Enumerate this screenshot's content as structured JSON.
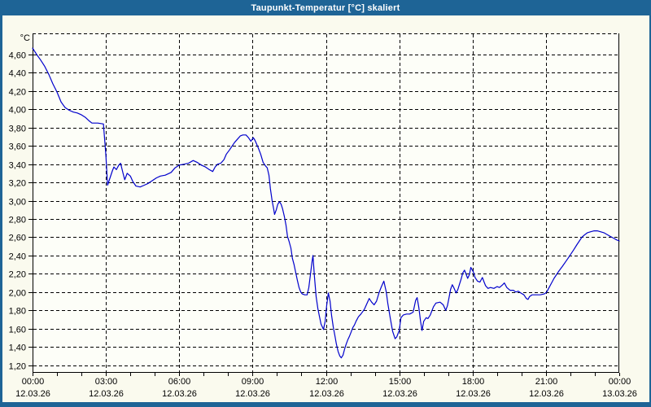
{
  "title": "Taupunkt-Temperatur [°C] skaliert",
  "colors": {
    "title_bar_bg": "#1E6496",
    "title_text": "#FFFFFF",
    "frame": "#1E6496",
    "margin_bg": "#FAFAEE",
    "plot_bg": "#FDFEF8",
    "grid": "#000000",
    "label": "#000000",
    "series_line": "#0000CC"
  },
  "chart_data": {
    "type": "line",
    "title": "Taupunkt-Temperatur [°C] skaliert",
    "ylabel": "°C",
    "xlabel": "",
    "grid": "dashed, on",
    "legend": "none",
    "ylim": [
      1.12,
      4.83
    ],
    "xlim_hours": [
      0,
      24
    ],
    "y_ticks": [
      {
        "value": 4.6,
        "label": "4,60"
      },
      {
        "value": 4.4,
        "label": "4,40"
      },
      {
        "value": 4.2,
        "label": "4,20"
      },
      {
        "value": 4.0,
        "label": "4,00"
      },
      {
        "value": 3.8,
        "label": "3,80"
      },
      {
        "value": 3.6,
        "label": "3,60"
      },
      {
        "value": 3.4,
        "label": "3,40"
      },
      {
        "value": 3.2,
        "label": "3,20"
      },
      {
        "value": 3.0,
        "label": "3,00"
      },
      {
        "value": 2.8,
        "label": "2,80"
      },
      {
        "value": 2.6,
        "label": "2,60"
      },
      {
        "value": 2.4,
        "label": "2,40"
      },
      {
        "value": 2.2,
        "label": "2,20"
      },
      {
        "value": 2.0,
        "label": "2,00"
      },
      {
        "value": 1.8,
        "label": "1,80"
      },
      {
        "value": 1.6,
        "label": "1,60"
      },
      {
        "value": 1.4,
        "label": "1,40"
      },
      {
        "value": 1.2,
        "label": "1,20"
      }
    ],
    "x_ticks": [
      {
        "hour": 0,
        "time": "00:00",
        "date": "12.03.26"
      },
      {
        "hour": 3,
        "time": "03:00",
        "date": "12.03.26"
      },
      {
        "hour": 6,
        "time": "06:00",
        "date": "12.03.26"
      },
      {
        "hour": 9,
        "time": "09:00",
        "date": "12.03.26"
      },
      {
        "hour": 12,
        "time": "12:00",
        "date": "12.03.26"
      },
      {
        "hour": 15,
        "time": "15:00",
        "date": "12.03.26"
      },
      {
        "hour": 18,
        "time": "18:00",
        "date": "12.03.26"
      },
      {
        "hour": 21,
        "time": "21:00",
        "date": "12.03.26"
      },
      {
        "hour": 24,
        "time": "00:00",
        "date": "13.03.26"
      }
    ],
    "series": [
      {
        "name": "Taupunkt-Temperatur",
        "color": "#0000CC",
        "points": {
          "t": [
            0.0,
            0.17,
            0.33,
            0.5,
            0.67,
            0.83,
            1.0,
            1.17,
            1.33,
            1.5,
            1.67,
            1.83,
            2.0,
            2.17,
            2.33,
            2.43,
            2.67,
            2.9,
            3.0,
            3.07,
            3.17,
            3.27,
            3.33,
            3.43,
            3.53,
            3.6,
            3.7,
            3.77,
            3.87,
            4.0,
            4.1,
            4.23,
            4.4,
            4.57,
            4.73,
            4.9,
            5.07,
            5.23,
            5.43,
            5.67,
            5.83,
            6.0,
            6.2,
            6.37,
            6.57,
            6.73,
            6.9,
            7.07,
            7.23,
            7.37,
            7.47,
            7.57,
            7.7,
            7.83,
            7.93,
            8.07,
            8.17,
            8.27,
            8.4,
            8.5,
            8.6,
            8.73,
            8.83,
            8.93,
            9.03,
            9.1,
            9.23,
            9.33,
            9.43,
            9.53,
            9.6,
            9.67,
            9.73,
            9.8,
            9.87,
            9.9,
            9.97,
            10.03,
            10.1,
            10.17,
            10.23,
            10.3,
            10.37,
            10.43,
            10.5,
            10.57,
            10.63,
            10.7,
            10.77,
            10.83,
            10.9,
            10.97,
            11.03,
            11.13,
            11.23,
            11.3,
            11.37,
            11.43,
            11.47,
            11.53,
            11.6,
            11.67,
            11.73,
            11.8,
            11.87,
            11.9,
            11.97,
            12.03,
            12.1,
            12.17,
            12.23,
            12.3,
            12.37,
            12.43,
            12.5,
            12.57,
            12.63,
            12.7,
            12.77,
            12.83,
            12.9,
            12.97,
            13.03,
            13.1,
            13.17,
            13.23,
            13.33,
            13.43,
            13.57,
            13.67,
            13.77,
            13.87,
            13.97,
            14.07,
            14.17,
            14.27,
            14.37,
            14.47,
            14.53,
            14.63,
            14.73,
            14.83,
            14.9,
            15.0,
            15.07,
            15.17,
            15.3,
            15.43,
            15.57,
            15.67,
            15.73,
            15.8,
            15.87,
            15.93,
            16.0,
            16.1,
            16.17,
            16.27,
            16.4,
            16.5,
            16.67,
            16.8,
            16.9,
            16.97,
            17.03,
            17.1,
            17.17,
            17.23,
            17.33,
            17.4,
            17.47,
            17.53,
            17.6,
            17.67,
            17.73,
            17.8,
            17.87,
            17.93,
            18.03,
            18.1,
            18.2,
            18.3,
            18.4,
            18.47,
            18.53,
            18.63,
            18.73,
            18.87,
            19.0,
            19.1,
            19.23,
            19.3,
            19.4,
            19.53,
            19.67,
            19.77,
            19.87,
            19.97,
            20.1,
            20.2,
            20.27,
            20.33,
            20.43,
            20.6,
            20.77,
            20.93,
            21.03,
            21.13,
            21.23,
            21.33,
            21.43,
            21.53,
            21.67,
            21.8,
            21.93,
            22.03,
            22.13,
            22.27,
            22.37,
            22.47,
            22.6,
            22.7,
            22.83,
            22.97,
            23.1,
            23.23,
            23.37,
            23.5,
            23.63,
            23.77,
            23.9,
            24.0
          ],
          "v": [
            4.67,
            4.6,
            4.54,
            4.47,
            4.38,
            4.28,
            4.19,
            4.08,
            4.02,
            3.99,
            3.97,
            3.96,
            3.94,
            3.91,
            3.87,
            3.85,
            3.85,
            3.84,
            3.5,
            3.17,
            3.25,
            3.33,
            3.37,
            3.34,
            3.39,
            3.41,
            3.3,
            3.23,
            3.3,
            3.27,
            3.21,
            3.16,
            3.15,
            3.17,
            3.19,
            3.22,
            3.25,
            3.27,
            3.28,
            3.31,
            3.36,
            3.39,
            3.4,
            3.41,
            3.44,
            3.42,
            3.39,
            3.37,
            3.34,
            3.32,
            3.37,
            3.4,
            3.41,
            3.45,
            3.51,
            3.56,
            3.6,
            3.64,
            3.68,
            3.71,
            3.72,
            3.72,
            3.69,
            3.65,
            3.69,
            3.66,
            3.58,
            3.51,
            3.42,
            3.38,
            3.36,
            3.28,
            3.13,
            3.0,
            2.9,
            2.85,
            2.9,
            2.96,
            2.99,
            2.96,
            2.91,
            2.83,
            2.73,
            2.61,
            2.55,
            2.48,
            2.37,
            2.3,
            2.21,
            2.13,
            2.05,
            2.0,
            1.98,
            1.97,
            1.97,
            2.05,
            2.2,
            2.33,
            2.4,
            2.17,
            1.95,
            1.82,
            1.74,
            1.65,
            1.61,
            1.59,
            1.68,
            1.85,
            1.99,
            1.9,
            1.75,
            1.62,
            1.52,
            1.43,
            1.35,
            1.3,
            1.28,
            1.31,
            1.38,
            1.43,
            1.48,
            1.52,
            1.56,
            1.61,
            1.64,
            1.68,
            1.73,
            1.76,
            1.81,
            1.87,
            1.93,
            1.89,
            1.86,
            1.9,
            1.99,
            2.06,
            2.12,
            2.0,
            1.88,
            1.72,
            1.57,
            1.49,
            1.51,
            1.58,
            1.72,
            1.75,
            1.76,
            1.76,
            1.78,
            1.91,
            1.94,
            1.83,
            1.68,
            1.58,
            1.68,
            1.72,
            1.71,
            1.75,
            1.84,
            1.88,
            1.89,
            1.86,
            1.8,
            1.85,
            1.93,
            2.03,
            2.08,
            2.05,
            1.99,
            2.03,
            2.09,
            2.14,
            2.21,
            2.24,
            2.2,
            2.15,
            2.19,
            2.27,
            2.22,
            2.16,
            2.12,
            2.11,
            2.16,
            2.11,
            2.07,
            2.04,
            2.05,
            2.04,
            2.06,
            2.05,
            2.08,
            2.1,
            2.05,
            2.02,
            2.02,
            2.0,
            2.01,
            1.99,
            1.97,
            1.93,
            1.92,
            1.95,
            1.97,
            1.97,
            1.97,
            1.98,
            2.0,
            2.05,
            2.1,
            2.15,
            2.19,
            2.23,
            2.28,
            2.33,
            2.38,
            2.42,
            2.46,
            2.52,
            2.56,
            2.6,
            2.63,
            2.65,
            2.66,
            2.67,
            2.67,
            2.66,
            2.65,
            2.63,
            2.61,
            2.59,
            2.57,
            2.56
          ]
        }
      }
    ]
  }
}
